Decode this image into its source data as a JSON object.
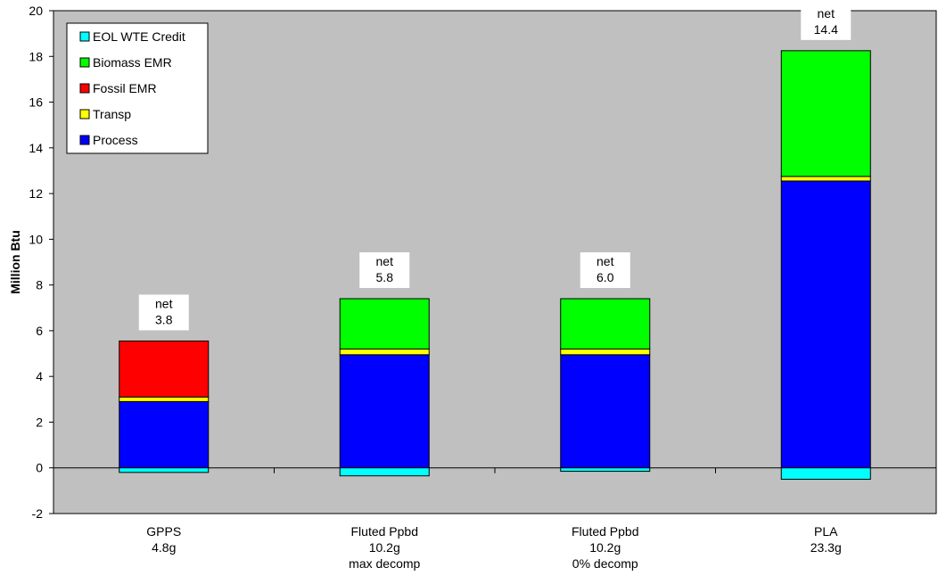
{
  "chart_data": {
    "type": "bar",
    "stacked": true,
    "ylabel": "Million Btu",
    "ylim": [
      -2,
      20
    ],
    "yticks": [
      -2,
      0,
      2,
      4,
      6,
      8,
      10,
      12,
      14,
      16,
      18,
      20
    ],
    "grid": false,
    "legend_position": "top-left",
    "plot_background": "#c0c0c0",
    "categories": [
      [
        "GPPS",
        "4.8g"
      ],
      [
        "Fluted Ppbd",
        "10.2g",
        "max decomp"
      ],
      [
        "Fluted Ppbd",
        "10.2g",
        "0% decomp"
      ],
      [
        "PLA",
        "23.3g"
      ]
    ],
    "series": [
      {
        "name": "Process",
        "color": "#0000ff",
        "values": [
          2.9,
          4.95,
          4.95,
          12.55
        ]
      },
      {
        "name": "Transp",
        "color": "#ffff00",
        "values": [
          0.2,
          0.25,
          0.25,
          0.2
        ]
      },
      {
        "name": "Fossil EMR",
        "color": "#ff0000",
        "values": [
          2.45,
          0,
          0,
          0
        ]
      },
      {
        "name": "Biomass EMR",
        "color": "#00ff00",
        "values": [
          0,
          2.2,
          2.2,
          5.5
        ]
      },
      {
        "name": "EOL WTE Credit",
        "color": "#00ffff",
        "values": [
          -0.2,
          -0.35,
          -0.15,
          -0.5
        ]
      }
    ],
    "legend_order": [
      "EOL WTE Credit",
      "Biomass EMR",
      "Fossil EMR",
      "Transp",
      "Process"
    ],
    "annotations": [
      {
        "label": "net",
        "value": "3.8"
      },
      {
        "label": "net",
        "value": "5.8"
      },
      {
        "label": "net",
        "value": "6.0"
      },
      {
        "label": "net",
        "value": "14.4"
      }
    ]
  }
}
